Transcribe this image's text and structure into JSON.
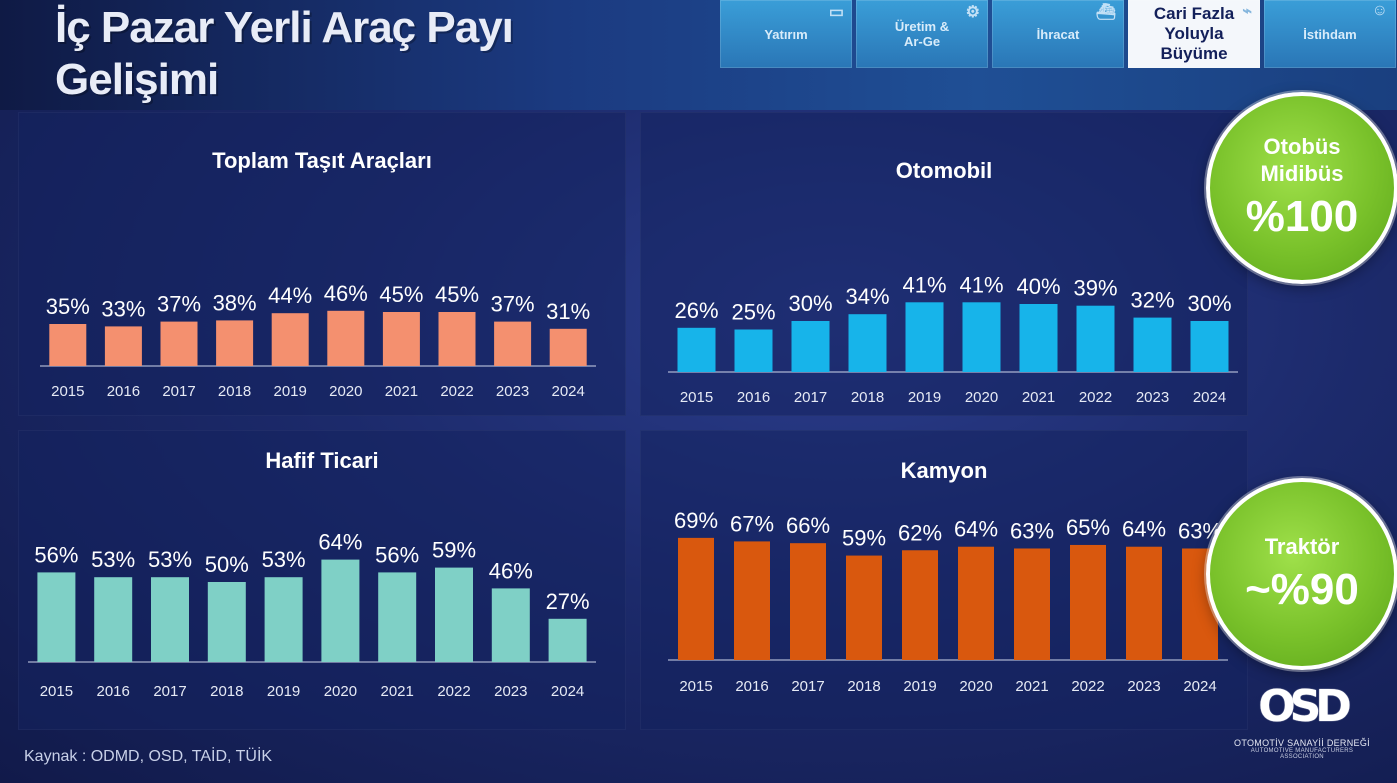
{
  "page": {
    "title_line1": "İç Pazar Yerli Araç Payı",
    "title_line2": "Gelişimi",
    "source": "Kaynak : ODMD, OSD, TAİD, TÜİK"
  },
  "nav": {
    "tabs": [
      {
        "label": "Yatırım",
        "icon": "factory-icon"
      },
      {
        "label": "Üretim & Ar-Ge",
        "icon": "gears-icon"
      },
      {
        "label": "İhracat",
        "icon": "ship-icon"
      },
      {
        "label": "Cari Fazla Yoluyla Büyüme",
        "icon": "growth-chart-icon",
        "active": true
      },
      {
        "label": "İstihdam",
        "icon": "people-icon"
      }
    ]
  },
  "badges": {
    "bus": {
      "line1": "Otobüs",
      "line2": "Midibüs",
      "value": "%100"
    },
    "tractor": {
      "line1": "Traktör",
      "value": "~%90"
    }
  },
  "logo": {
    "mark": "OSD",
    "line1": "OTOMOTİV SANAYİİ DERNEĞİ",
    "line2": "AUTOMOTIVE MANUFACTURERS ASSOCIATION"
  },
  "colors": {
    "total": "#f4906f",
    "car": "#17b4ea",
    "lcv": "#7fd0c6",
    "truck": "#d9580e",
    "badge_green": "#79c12a"
  },
  "chart_data": [
    {
      "id": "total",
      "type": "bar",
      "title": "Toplam Taşıt Araçları",
      "categories": [
        "2015",
        "2016",
        "2017",
        "2018",
        "2019",
        "2020",
        "2021",
        "2022",
        "2023",
        "2024"
      ],
      "values": [
        35,
        33,
        37,
        38,
        44,
        46,
        45,
        45,
        37,
        31
      ],
      "labels": [
        "35%",
        "33%",
        "37%",
        "38%",
        "44%",
        "46%",
        "45%",
        "45%",
        "37%",
        "31%"
      ],
      "unit": "%",
      "ylim": [
        0,
        100
      ]
    },
    {
      "id": "car",
      "type": "bar",
      "title": "Otomobil",
      "categories": [
        "2015",
        "2016",
        "2017",
        "2018",
        "2019",
        "2020",
        "2021",
        "2022",
        "2023",
        "2024"
      ],
      "values": [
        26,
        25,
        30,
        34,
        41,
        41,
        40,
        39,
        32,
        30
      ],
      "labels": [
        "26%",
        "25%",
        "30%",
        "34%",
        "41%",
        "41%",
        "40%",
        "39%",
        "32%",
        "30%"
      ],
      "unit": "%",
      "ylim": [
        0,
        100
      ]
    },
    {
      "id": "lcv",
      "type": "bar",
      "title": "Hafif Ticari",
      "categories": [
        "2015",
        "2016",
        "2017",
        "2018",
        "2019",
        "2020",
        "2021",
        "2022",
        "2023",
        "2024"
      ],
      "values": [
        56,
        53,
        53,
        50,
        53,
        64,
        56,
        59,
        46,
        27
      ],
      "labels": [
        "56%",
        "53%",
        "53%",
        "50%",
        "53%",
        "64%",
        "56%",
        "59%",
        "46%",
        "27%"
      ],
      "unit": "%",
      "ylim": [
        0,
        100
      ]
    },
    {
      "id": "truck",
      "type": "bar",
      "title": "Kamyon",
      "categories": [
        "2015",
        "2016",
        "2017",
        "2018",
        "2019",
        "2020",
        "2021",
        "2022",
        "2023",
        "2024"
      ],
      "values": [
        69,
        67,
        66,
        59,
        62,
        64,
        63,
        65,
        64,
        63
      ],
      "labels": [
        "69%",
        "67%",
        "66%",
        "59%",
        "62%",
        "64%",
        "63%",
        "65%",
        "64%",
        "63%"
      ],
      "unit": "%",
      "ylim": [
        0,
        100
      ]
    }
  ]
}
